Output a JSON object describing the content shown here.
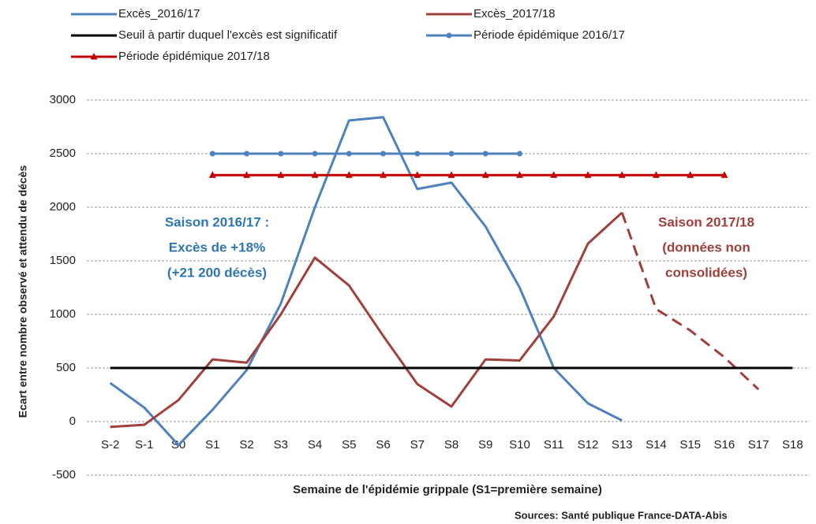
{
  "chart_data": {
    "type": "line",
    "y_label": "Ecart entre nombre observé et attendu de décès",
    "x_label": "Semaine de l'épidémie grippale (S1=première semaine)",
    "source": "Sources: Santé publique France-DATA-Abis",
    "categories": [
      "S-2",
      "S-1",
      "S0",
      "S1",
      "S2",
      "S3",
      "S4",
      "S5",
      "S6",
      "S7",
      "S8",
      "S9",
      "S10",
      "S11",
      "S12",
      "S13",
      "S14",
      "S15",
      "S16",
      "S17",
      "S18"
    ],
    "series": [
      {
        "name": "Excès_2016/17",
        "color": "#4f81bd",
        "values": [
          360,
          130,
          -220,
          110,
          480,
          1100,
          2000,
          2810,
          2840,
          2170,
          2230,
          1820,
          1250,
          500,
          170,
          10,
          null,
          null,
          null,
          null,
          null
        ]
      },
      {
        "name": "Excès_2017/18",
        "color": "#a0403c",
        "dash_from": 15,
        "values": [
          -50,
          -30,
          200,
          580,
          550,
          1000,
          1530,
          1270,
          800,
          350,
          140,
          580,
          570,
          980,
          1660,
          1950,
          1050,
          850,
          600,
          300,
          null
        ]
      },
      {
        "name": "Seuil à partir duquel l'excès est significatif",
        "color": "#000000",
        "values": [
          500,
          500,
          500,
          500,
          500,
          500,
          500,
          500,
          500,
          500,
          500,
          500,
          500,
          500,
          500,
          500,
          500,
          500,
          500,
          500,
          500
        ]
      },
      {
        "name": "Période épidémique 2016/17",
        "color": "#4f81bd",
        "marker": "circle",
        "values": [
          null,
          null,
          null,
          2500,
          2500,
          2500,
          2500,
          2500,
          2500,
          2500,
          2500,
          2500,
          2500,
          null,
          null,
          null,
          null,
          null,
          null,
          null,
          null
        ]
      },
      {
        "name": "Période épidémique 2017/18",
        "color": "#c00000",
        "marker": "triangle",
        "values": [
          null,
          null,
          null,
          2300,
          2300,
          2300,
          2300,
          2300,
          2300,
          2300,
          2300,
          2300,
          2300,
          2300,
          2300,
          2300,
          2300,
          2300,
          2300,
          null,
          null
        ]
      }
    ],
    "annotations": [
      {
        "lines": [
          "Saison 2016/17 :",
          "Excès de +18%",
          "(+21 200 décès)"
        ],
        "color": "#2e75b6"
      },
      {
        "lines": [
          "Saison 2017/18",
          "(données non",
          "consolidées)"
        ],
        "color": "#a0403c"
      }
    ],
    "ylim": [
      -500,
      3000
    ],
    "yticks": [
      -500,
      0,
      500,
      1000,
      1500,
      2000,
      2500,
      3000
    ],
    "grid": true
  }
}
